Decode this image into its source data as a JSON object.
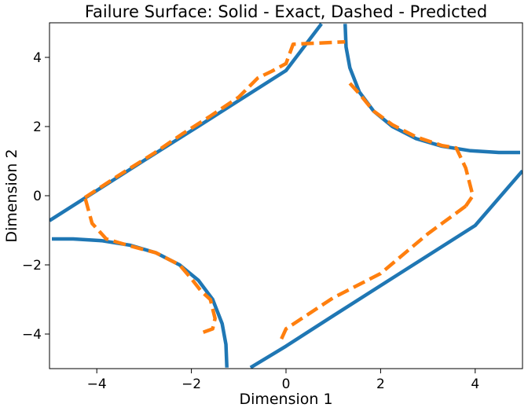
{
  "chart_data": {
    "type": "line",
    "title": "Failure Surface: Solid - Exact, Dashed - Predicted",
    "xlabel": "Dimension 1",
    "ylabel": "Dimension 2",
    "xlim": [
      -5,
      5
    ],
    "ylim": [
      -5,
      5
    ],
    "xticks": [
      {
        "value": -4,
        "label": "−4"
      },
      {
        "value": -2,
        "label": "−2"
      },
      {
        "value": 0,
        "label": "0"
      },
      {
        "value": 2,
        "label": "2"
      },
      {
        "value": 4,
        "label": "4"
      }
    ],
    "yticks": [
      {
        "value": -4,
        "label": "−4"
      },
      {
        "value": -2,
        "label": "−2"
      },
      {
        "value": 0,
        "label": "0"
      },
      {
        "value": 2,
        "label": "2"
      },
      {
        "value": 4,
        "label": "4"
      }
    ],
    "grid": false,
    "legend": "none",
    "series": [
      {
        "style": "solid",
        "color": "#1f77b4",
        "segments": [
          [
            [
              -5.0,
              -0.72
            ],
            [
              -4.0,
              0.15
            ],
            [
              -3.0,
              1.02
            ],
            [
              -2.0,
              1.88
            ],
            [
              -1.0,
              2.75
            ],
            [
              0.0,
              3.62
            ],
            [
              0.75,
              4.97
            ]
          ],
          [
            [
              1.25,
              4.97
            ],
            [
              1.27,
              4.3
            ],
            [
              1.35,
              3.7
            ],
            [
              1.55,
              3.0
            ],
            [
              1.85,
              2.45
            ],
            [
              2.25,
              2.0
            ],
            [
              2.75,
              1.65
            ],
            [
              3.3,
              1.43
            ],
            [
              3.9,
              1.3
            ],
            [
              4.5,
              1.25
            ],
            [
              4.95,
              1.25
            ]
          ],
          [
            [
              -4.95,
              -1.25
            ],
            [
              -4.5,
              -1.25
            ],
            [
              -3.9,
              -1.3
            ],
            [
              -3.3,
              -1.43
            ],
            [
              -2.75,
              -1.65
            ],
            [
              -2.25,
              -2.0
            ],
            [
              -1.85,
              -2.45
            ],
            [
              -1.55,
              -3.0
            ],
            [
              -1.35,
              -3.7
            ],
            [
              -1.27,
              -4.3
            ],
            [
              -1.25,
              -4.97
            ]
          ],
          [
            [
              -0.75,
              -4.97
            ],
            [
              0.0,
              -4.35
            ],
            [
              1.0,
              -3.47
            ],
            [
              2.0,
              -2.6
            ],
            [
              3.0,
              -1.73
            ],
            [
              4.0,
              -0.86
            ],
            [
              5.0,
              0.72
            ]
          ]
        ]
      },
      {
        "style": "dashed",
        "color": "#ff7f0e",
        "segments": [
          [
            [
              -4.25,
              -0.05
            ],
            [
              -3.5,
              0.62
            ],
            [
              -2.8,
              1.22
            ],
            [
              -2.2,
              1.78
            ],
            [
              -1.6,
              2.3
            ],
            [
              -1.0,
              2.85
            ],
            [
              -0.6,
              3.4
            ],
            [
              -0.3,
              3.6
            ],
            [
              0.0,
              3.82
            ],
            [
              0.15,
              4.38
            ],
            [
              1.25,
              4.45
            ]
          ],
          [
            [
              1.35,
              3.25
            ],
            [
              1.55,
              2.95
            ],
            [
              1.85,
              2.45
            ],
            [
              2.25,
              2.05
            ],
            [
              2.75,
              1.7
            ],
            [
              3.3,
              1.45
            ],
            [
              3.6,
              1.38
            ],
            [
              3.8,
              0.8
            ],
            [
              3.95,
              0.0
            ],
            [
              3.8,
              -0.3
            ]
          ],
          [
            [
              3.8,
              -0.3
            ],
            [
              3.0,
              -1.1
            ],
            [
              2.0,
              -2.25
            ],
            [
              1.0,
              -2.95
            ],
            [
              0.0,
              -3.85
            ],
            [
              -0.1,
              -4.15
            ]
          ],
          [
            [
              -1.75,
              -3.95
            ],
            [
              -1.55,
              -3.85
            ],
            [
              -1.5,
              -3.55
            ],
            [
              -1.6,
              -3.0
            ],
            [
              -1.8,
              -2.75
            ],
            [
              -2.0,
              -2.4
            ],
            [
              -2.25,
              -2.0
            ],
            [
              -2.75,
              -1.65
            ],
            [
              -3.3,
              -1.45
            ],
            [
              -3.8,
              -1.25
            ],
            [
              -4.1,
              -0.8
            ],
            [
              -4.25,
              -0.05
            ]
          ]
        ]
      }
    ]
  }
}
